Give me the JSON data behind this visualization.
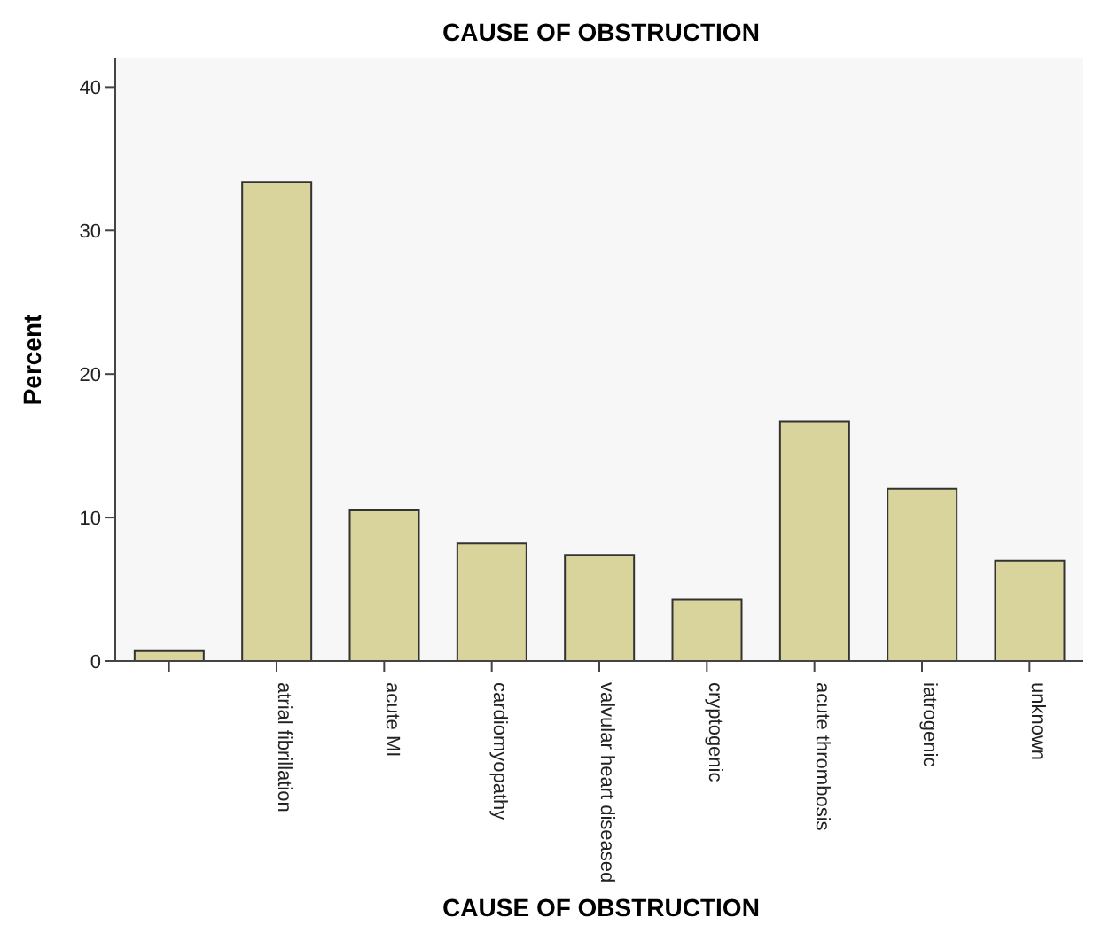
{
  "chart_data": {
    "type": "bar",
    "title": "CAUSE OF OBSTRUCTION",
    "xlabel": "CAUSE OF OBSTRUCTION",
    "ylabel": "Percent",
    "categories": [
      null,
      "atrial fibrillation",
      "acute MI",
      "cardiomyopathy",
      "valvular heart diseased",
      "cryptogenic",
      "acute thrombosis",
      "iatrogenic",
      "unknown"
    ],
    "values": [
      0.7,
      33.4,
      10.5,
      8.2,
      7.4,
      4.3,
      16.7,
      12.0,
      7.0
    ],
    "color": "#d9d49b",
    "ylim": [
      0,
      42
    ],
    "yticks": [
      0,
      10,
      20,
      30,
      40
    ],
    "grid": false,
    "legend": false
  }
}
